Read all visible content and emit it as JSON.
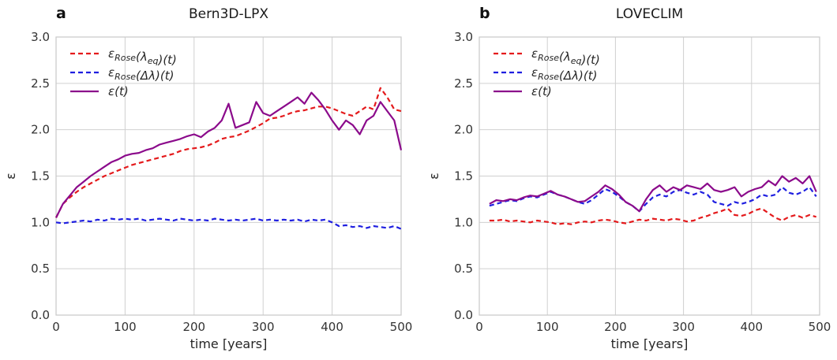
{
  "chart_data": [
    {
      "type": "line",
      "panel": "a",
      "title": "Bern3D-LPX",
      "xlabel": "time [years]",
      "ylabel": "ε",
      "xlim": [
        0,
        500
      ],
      "ylim": [
        0.0,
        3.0
      ],
      "xticks": [
        "0",
        "100",
        "200",
        "300",
        "400",
        "500"
      ],
      "yticks": [
        "0.0",
        "0.5",
        "1.0",
        "1.5",
        "2.0",
        "2.5",
        "3.0"
      ],
      "grid": true,
      "legend": "top-left",
      "series": [
        {
          "name": "ε_Rose(λ_eq)(t)",
          "legend_base": "ε",
          "legend_sub": "Rose",
          "legend_mid": "(λ",
          "legend_sub2": "eq",
          "legend_end": ")(t)",
          "color": "#e41a1c",
          "style": "dashed",
          "x": [
            0,
            10,
            20,
            30,
            40,
            50,
            60,
            70,
            80,
            90,
            100,
            110,
            120,
            130,
            140,
            150,
            160,
            170,
            180,
            190,
            200,
            210,
            220,
            230,
            240,
            250,
            260,
            270,
            280,
            290,
            300,
            310,
            320,
            330,
            340,
            350,
            360,
            370,
            380,
            390,
            400,
            410,
            420,
            430,
            440,
            450,
            460,
            470,
            480,
            490,
            500
          ],
          "y": [
            1.05,
            1.2,
            1.27,
            1.33,
            1.38,
            1.42,
            1.46,
            1.5,
            1.53,
            1.56,
            1.59,
            1.62,
            1.64,
            1.66,
            1.68,
            1.7,
            1.72,
            1.74,
            1.77,
            1.79,
            1.8,
            1.81,
            1.83,
            1.86,
            1.9,
            1.92,
            1.93,
            1.96,
            1.99,
            2.03,
            2.07,
            2.12,
            2.13,
            2.15,
            2.18,
            2.2,
            2.21,
            2.23,
            2.25,
            2.25,
            2.23,
            2.2,
            2.17,
            2.15,
            2.2,
            2.25,
            2.22,
            2.45,
            2.35,
            2.22,
            2.2
          ]
        },
        {
          "name": "ε_Rose(Δλ)(t)",
          "legend_base": "ε",
          "legend_sub": "Rose",
          "legend_mid": "(Δλ",
          "legend_sub2": "",
          "legend_end": ")(t)",
          "color": "#1f1fe0",
          "style": "dashed",
          "x": [
            0,
            10,
            20,
            30,
            40,
            50,
            60,
            70,
            80,
            90,
            100,
            110,
            120,
            130,
            140,
            150,
            160,
            170,
            180,
            190,
            200,
            210,
            220,
            230,
            240,
            250,
            260,
            270,
            280,
            290,
            300,
            310,
            320,
            330,
            340,
            350,
            360,
            370,
            380,
            390,
            400,
            410,
            420,
            430,
            440,
            450,
            460,
            470,
            480,
            490,
            500
          ],
          "y": [
            1.0,
            0.99,
            1.0,
            1.01,
            1.02,
            1.01,
            1.03,
            1.02,
            1.04,
            1.03,
            1.04,
            1.03,
            1.04,
            1.02,
            1.03,
            1.04,
            1.03,
            1.02,
            1.04,
            1.03,
            1.02,
            1.03,
            1.02,
            1.04,
            1.03,
            1.02,
            1.03,
            1.02,
            1.03,
            1.04,
            1.02,
            1.03,
            1.02,
            1.03,
            1.02,
            1.03,
            1.01,
            1.03,
            1.02,
            1.03,
            1.0,
            0.96,
            0.97,
            0.95,
            0.96,
            0.94,
            0.96,
            0.95,
            0.94,
            0.96,
            0.93
          ]
        },
        {
          "name": "ε(t)",
          "legend_base": "ε",
          "legend_sub": "",
          "legend_mid": "(t)",
          "legend_sub2": "",
          "legend_end": "",
          "color": "#8b0a8b",
          "style": "solid",
          "x": [
            0,
            10,
            20,
            30,
            40,
            50,
            60,
            70,
            80,
            90,
            100,
            110,
            120,
            130,
            140,
            150,
            160,
            170,
            180,
            190,
            200,
            210,
            220,
            230,
            240,
            250,
            260,
            270,
            280,
            290,
            300,
            310,
            320,
            330,
            340,
            350,
            360,
            370,
            380,
            390,
            400,
            410,
            420,
            430,
            440,
            450,
            460,
            470,
            480,
            490,
            500
          ],
          "y": [
            1.05,
            1.2,
            1.29,
            1.38,
            1.44,
            1.5,
            1.55,
            1.6,
            1.65,
            1.68,
            1.72,
            1.74,
            1.75,
            1.78,
            1.8,
            1.84,
            1.86,
            1.88,
            1.9,
            1.93,
            1.95,
            1.92,
            1.98,
            2.02,
            2.1,
            2.28,
            2.02,
            2.05,
            2.08,
            2.3,
            2.18,
            2.15,
            2.2,
            2.25,
            2.3,
            2.35,
            2.28,
            2.4,
            2.32,
            2.22,
            2.1,
            2.0,
            2.1,
            2.05,
            1.95,
            2.1,
            2.15,
            2.3,
            2.2,
            2.1,
            1.78
          ]
        }
      ]
    },
    {
      "type": "line",
      "panel": "b",
      "title": "LOVECLIM",
      "xlabel": "time [years]",
      "ylabel": "ε",
      "xlim": [
        0,
        500
      ],
      "ylim": [
        0.0,
        3.0
      ],
      "xticks": [
        "0",
        "100",
        "200",
        "300",
        "400",
        "500"
      ],
      "yticks": [
        "0.0",
        "0.5",
        "1.0",
        "1.5",
        "2.0",
        "2.5",
        "3.0"
      ],
      "grid": true,
      "legend": "top-left",
      "series": [
        {
          "name": "ε_Rose(λ_eq)(t)",
          "legend_base": "ε",
          "legend_sub": "Rose",
          "legend_mid": "(λ",
          "legend_sub2": "eq",
          "legend_end": ")(t)",
          "color": "#e41a1c",
          "style": "dashed",
          "x": [
            15,
            25,
            35,
            45,
            55,
            65,
            75,
            85,
            95,
            105,
            115,
            125,
            135,
            145,
            155,
            165,
            175,
            185,
            195,
            205,
            215,
            225,
            235,
            245,
            255,
            265,
            275,
            285,
            295,
            305,
            315,
            325,
            335,
            345,
            355,
            365,
            375,
            385,
            395,
            405,
            415,
            425,
            435,
            445,
            455,
            465,
            475,
            485,
            495
          ],
          "y": [
            1.02,
            1.02,
            1.03,
            1.01,
            1.02,
            1.01,
            1.0,
            1.02,
            1.01,
            1.0,
            0.98,
            0.99,
            0.98,
            1.0,
            1.01,
            1.0,
            1.02,
            1.03,
            1.02,
            1.0,
            0.99,
            1.01,
            1.03,
            1.02,
            1.04,
            1.03,
            1.02,
            1.04,
            1.03,
            1.01,
            1.02,
            1.05,
            1.07,
            1.1,
            1.12,
            1.15,
            1.08,
            1.07,
            1.09,
            1.13,
            1.15,
            1.1,
            1.05,
            1.02,
            1.06,
            1.08,
            1.05,
            1.08,
            1.06
          ]
        },
        {
          "name": "ε_Rose(Δλ)(t)",
          "legend_base": "ε",
          "legend_sub": "Rose",
          "legend_mid": "(Δλ",
          "legend_sub2": "",
          "legend_end": ")(t)",
          "color": "#1f1fe0",
          "style": "dashed",
          "x": [
            15,
            25,
            35,
            45,
            55,
            65,
            75,
            85,
            95,
            105,
            115,
            125,
            135,
            145,
            155,
            165,
            175,
            185,
            195,
            205,
            215,
            225,
            235,
            245,
            255,
            265,
            275,
            285,
            295,
            305,
            315,
            325,
            335,
            345,
            355,
            365,
            375,
            385,
            395,
            405,
            415,
            425,
            435,
            445,
            455,
            465,
            475,
            485,
            495
          ],
          "y": [
            1.18,
            1.2,
            1.22,
            1.24,
            1.23,
            1.26,
            1.28,
            1.27,
            1.3,
            1.33,
            1.3,
            1.28,
            1.25,
            1.22,
            1.2,
            1.24,
            1.3,
            1.36,
            1.33,
            1.28,
            1.22,
            1.18,
            1.12,
            1.2,
            1.27,
            1.3,
            1.28,
            1.33,
            1.35,
            1.32,
            1.3,
            1.33,
            1.3,
            1.22,
            1.2,
            1.18,
            1.22,
            1.2,
            1.22,
            1.25,
            1.3,
            1.28,
            1.3,
            1.38,
            1.32,
            1.3,
            1.33,
            1.38,
            1.28
          ]
        },
        {
          "name": "ε(t)",
          "legend_base": "ε",
          "legend_sub": "",
          "legend_mid": "(t)",
          "legend_sub2": "",
          "legend_end": "",
          "color": "#8b0a8b",
          "style": "solid",
          "x": [
            15,
            25,
            35,
            45,
            55,
            65,
            75,
            85,
            95,
            105,
            115,
            125,
            135,
            145,
            155,
            165,
            175,
            185,
            195,
            205,
            215,
            225,
            235,
            245,
            255,
            265,
            275,
            285,
            295,
            305,
            315,
            325,
            335,
            345,
            355,
            365,
            375,
            385,
            395,
            405,
            415,
            425,
            435,
            445,
            455,
            465,
            475,
            485,
            495
          ],
          "y": [
            1.2,
            1.24,
            1.23,
            1.25,
            1.24,
            1.27,
            1.29,
            1.28,
            1.31,
            1.34,
            1.3,
            1.28,
            1.25,
            1.22,
            1.23,
            1.28,
            1.33,
            1.4,
            1.36,
            1.3,
            1.22,
            1.18,
            1.12,
            1.25,
            1.35,
            1.4,
            1.33,
            1.38,
            1.35,
            1.4,
            1.38,
            1.36,
            1.42,
            1.35,
            1.33,
            1.35,
            1.38,
            1.28,
            1.33,
            1.36,
            1.38,
            1.45,
            1.4,
            1.5,
            1.44,
            1.48,
            1.42,
            1.5,
            1.33
          ]
        }
      ]
    }
  ]
}
